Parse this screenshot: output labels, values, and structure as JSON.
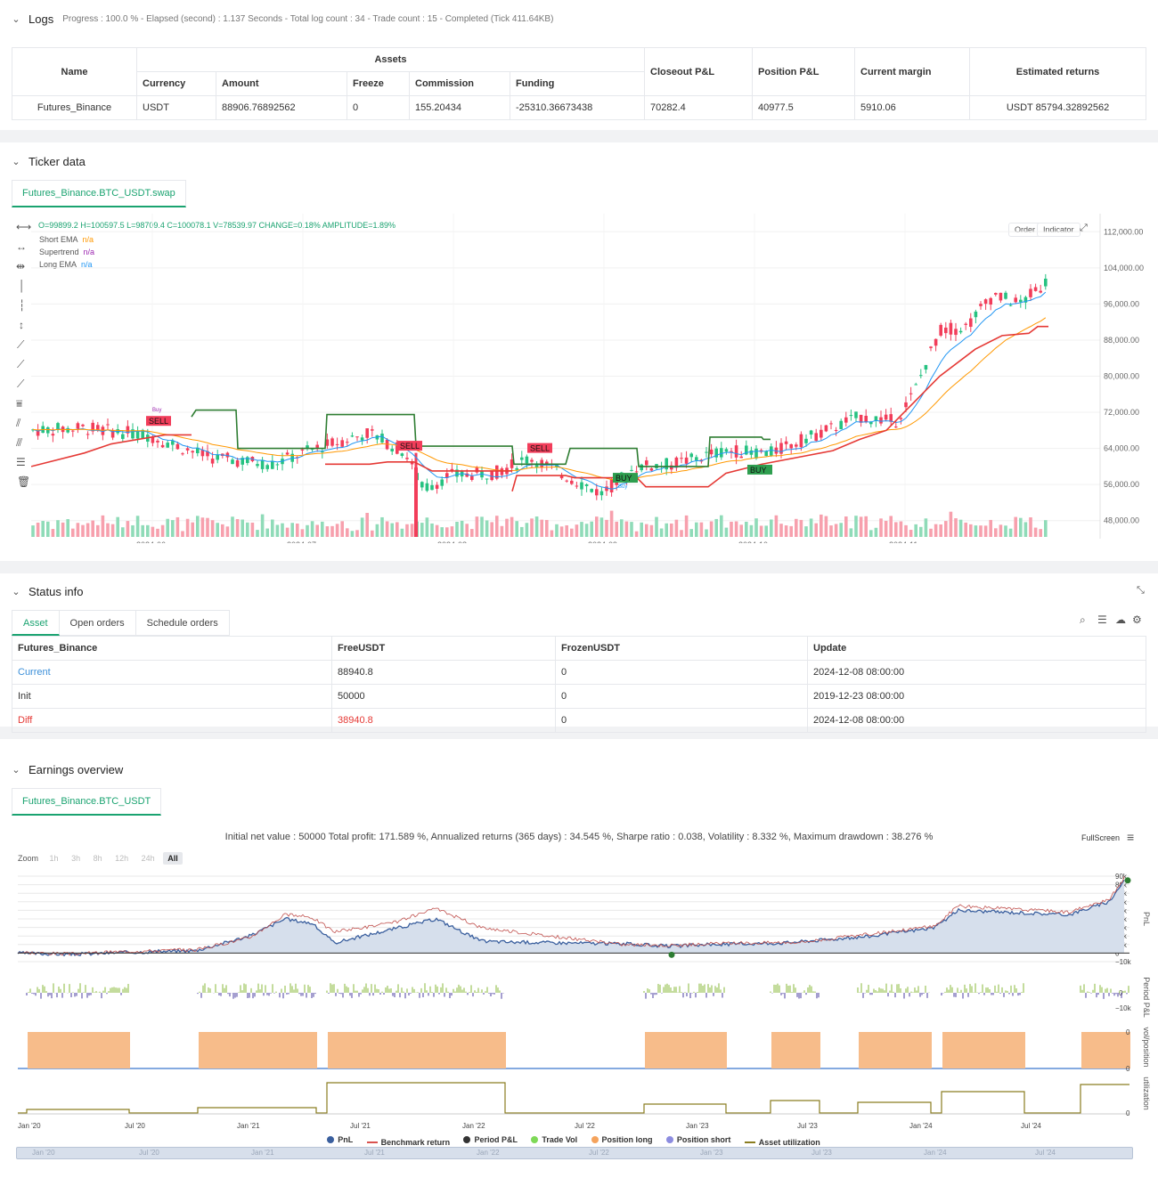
{
  "logs": {
    "title": "Logs",
    "meta": "Progress : 100.0 % - Elapsed (second) : 1.137  Seconds - Total log count : 34 - Trade count : 15 - Completed (Tick 411.64KB)",
    "headers": {
      "name": "Name",
      "assets": "Assets",
      "currency": "Currency",
      "amount": "Amount",
      "freeze": "Freeze",
      "commission": "Commission",
      "funding": "Funding",
      "closeout": "Closeout P&L",
      "position": "Position P&L",
      "margin": "Current margin",
      "estimated": "Estimated returns"
    },
    "row": {
      "name": "Futures_Binance",
      "currency": "USDT",
      "amount": "88906.76892562",
      "freeze": "0",
      "commission": "155.20434",
      "funding": "-25310.36673438",
      "closeout": "70282.4",
      "position": "40977.5",
      "margin": "5910.06",
      "estimated": "USDT 85794.32892562"
    }
  },
  "ticker": {
    "title": "Ticker data",
    "tab": "Futures_Binance.BTC_USDT.swap",
    "ohlc": "O=99899.2 H=100597.5 L=98709.4 C=100078.1 V=78539.97 CHANGE=0.18% AMPLITUDE=1.89%",
    "legend": [
      {
        "name": "Short EMA",
        "value": "n/a",
        "color": "#ff9800"
      },
      {
        "name": "Supertrend",
        "value": "n/a",
        "color": "#9c27b0"
      },
      {
        "name": "Long EMA",
        "value": "n/a",
        "color": "#2196f3"
      }
    ],
    "buttons": {
      "order": "Order",
      "indicator": "Indicator"
    },
    "y_ticks": [
      "112,000.00",
      "104,000.00",
      "96,000.00",
      "88,000.00",
      "80,000.00",
      "72,000.00",
      "64,000.00",
      "56,000.00",
      "48,000.00"
    ],
    "x_ticks": [
      "2024-06",
      "2024-07",
      "2024-08",
      "2024-09",
      "2024-10",
      "2024-11"
    ],
    "signals": {
      "sell": "SELL",
      "buy": "BUY",
      "buy_small": "Buy"
    }
  },
  "status": {
    "title": "Status info",
    "tabs": [
      "Asset",
      "Open orders",
      "Schedule orders"
    ],
    "headers": [
      "Futures_Binance",
      "FreeUSDT",
      "FrozenUSDT",
      "Update"
    ],
    "rows": [
      {
        "label": "Current",
        "free": "88940.8",
        "frozen": "0",
        "update": "2024-12-08 08:00:00",
        "color": "#3b8fd9"
      },
      {
        "label": "Init",
        "free": "50000",
        "frozen": "0",
        "update": "2019-12-23 08:00:00",
        "color": "#333333"
      },
      {
        "label": "Diff",
        "free": "38940.8",
        "frozen": "0",
        "update": "2024-12-08 08:00:00",
        "color": "#e53935"
      }
    ]
  },
  "earnings": {
    "title": "Earnings overview",
    "tab": "Futures_Binance.BTC_USDT",
    "summary": "Initial net value : 50000 Total profit: 171.589 %, Annualized returns (365 days) : 34.545 %, Sharpe ratio : 0.038, Volatility : 8.332 %, Maximum drawdown : 38.276 %",
    "fullscreen": "FullScreen",
    "zoom_label": "Zoom",
    "zoom": [
      "1h",
      "3h",
      "8h",
      "12h",
      "24h",
      "All"
    ],
    "pnl_ticks": [
      "90k",
      "80k",
      "70k",
      "60k",
      "50k",
      "40k",
      "30k",
      "20k",
      "10k",
      "0",
      "−10k"
    ],
    "period_ticks": [
      "0",
      "−10k"
    ],
    "axis_titles": [
      "PnL",
      "Period P&L",
      "vol/position",
      "utilization"
    ],
    "util_ticks": [
      "0",
      "0",
      "0"
    ],
    "x_ticks": [
      "Jan '20",
      "Jul '20",
      "Jan '21",
      "Jul '21",
      "Jan '22",
      "Jul '22",
      "Jan '23",
      "Jul '23",
      "Jan '24",
      "Jul '24"
    ],
    "legend": [
      {
        "name": "PnL",
        "color": "#3a5f9e",
        "shape": "dot"
      },
      {
        "name": "Benchmark return",
        "color": "#d9534f",
        "shape": "line"
      },
      {
        "name": "Period P&L",
        "color": "#333333",
        "shape": "dot"
      },
      {
        "name": "Trade Vol",
        "color": "#7ed957",
        "shape": "dot"
      },
      {
        "name": "Position long",
        "color": "#f5a35c",
        "shape": "dot"
      },
      {
        "name": "Position short",
        "color": "#8c8ce0",
        "shape": "dot"
      },
      {
        "name": "Asset utilization",
        "color": "#8a7d20",
        "shape": "line"
      }
    ]
  }
}
